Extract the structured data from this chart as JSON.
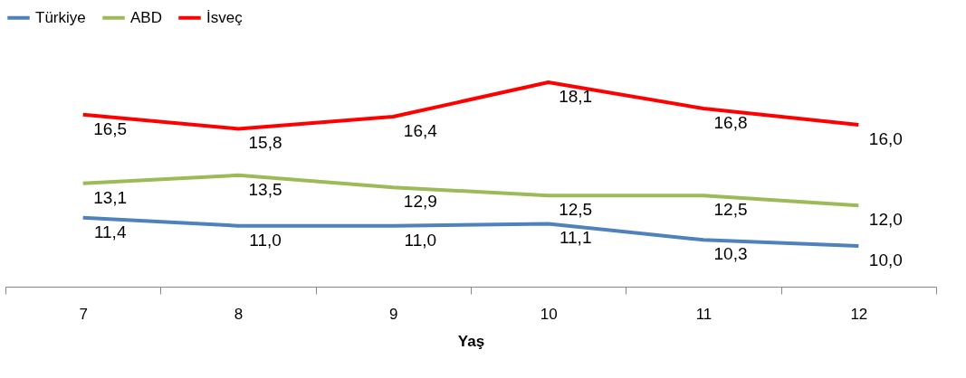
{
  "chart_data": {
    "type": "line",
    "xlabel": "Yaş",
    "categories": [
      "7",
      "8",
      "9",
      "10",
      "11",
      "12"
    ],
    "series": [
      {
        "name": "Türkiye",
        "color": "#4f81bd",
        "values": [
          11.4,
          11.0,
          11.0,
          11.1,
          10.3,
          10.0
        ],
        "value_labels": [
          "11,4",
          "11,0",
          "11,0",
          "11,1",
          "10,3",
          "10,0"
        ]
      },
      {
        "name": "ABD",
        "color": "#9bbb59",
        "values": [
          13.1,
          13.5,
          12.9,
          12.5,
          12.5,
          12.0
        ],
        "value_labels": [
          "13,1",
          "13,5",
          "12,9",
          "12,5",
          "12,5",
          "12,0"
        ]
      },
      {
        "name": "İsveç",
        "color": "#ff0000",
        "values": [
          16.5,
          15.8,
          16.4,
          18.1,
          16.8,
          16.0
        ],
        "value_labels": [
          "16,5",
          "15,8",
          "16,4",
          "18,1",
          "16,8",
          "16,0"
        ]
      }
    ],
    "legend": "top",
    "grid": false,
    "marker": "none",
    "line_style": "solid",
    "tick_labels": "x"
  }
}
